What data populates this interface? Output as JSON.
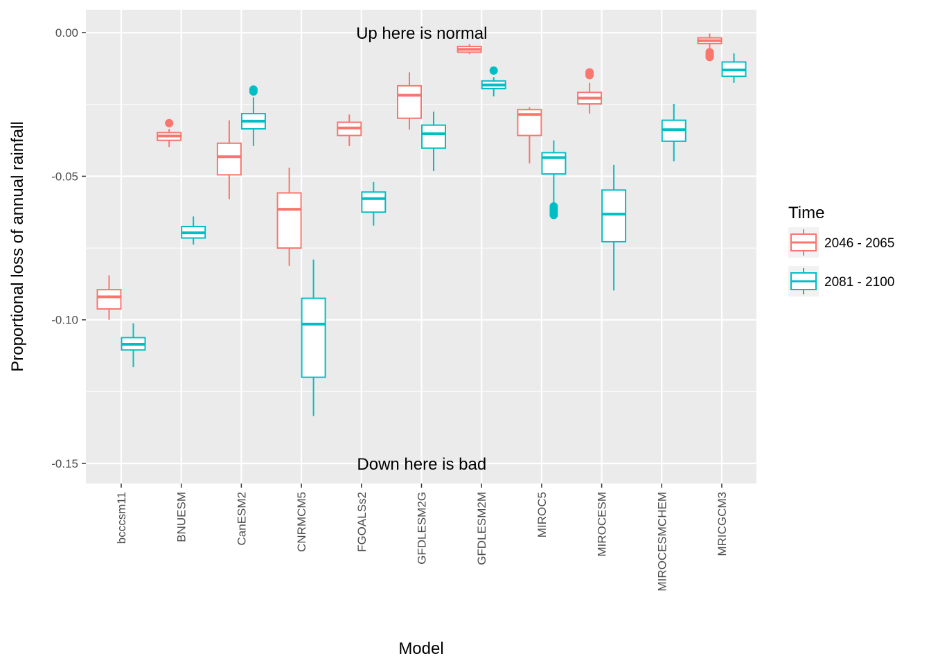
{
  "chart_data": {
    "type": "boxplot",
    "xlabel": "Model",
    "ylabel": "Proportional loss of annual rainfall",
    "ylim": [
      -0.157,
      0.008
    ],
    "y_ticks": [
      0.0,
      -0.05,
      -0.1,
      -0.15
    ],
    "y_tick_labels": [
      "0.00",
      "-0.05",
      "-0.10",
      "-0.15"
    ],
    "categories": [
      "bcccsm11",
      "BNUESM",
      "CanESM2",
      "CNRMCM5",
      "FGOALSs2",
      "GFDLESM2G",
      "GFDLESM2M",
      "MIROC5",
      "MIROCESM",
      "MIROCESMCHEM",
      "MRICGCM3"
    ],
    "grid": true,
    "legend": {
      "title": "Time",
      "position": "right"
    },
    "annotations": [
      {
        "text": "Up here is normal",
        "category": "FGOALSs2",
        "y": 0.0
      },
      {
        "text": "Down here is bad",
        "category": "FGOALSs2",
        "y": -0.15
      }
    ],
    "series": [
      {
        "name": "2046 - 2065",
        "color": "#F8766D",
        "boxes": [
          {
            "category": "bcccsm11",
            "min": -0.1,
            "q1": -0.0962,
            "median": -0.092,
            "q3": -0.0895,
            "max": -0.0845,
            "outliers": []
          },
          {
            "category": "BNUESM",
            "min": -0.0398,
            "q1": -0.0375,
            "median": -0.036,
            "q3": -0.0348,
            "max": -0.0335,
            "outliers": [
              -0.0315
            ]
          },
          {
            "category": "CanESM2",
            "min": -0.058,
            "q1": -0.0495,
            "median": -0.0432,
            "q3": -0.0385,
            "max": -0.0305,
            "outliers": []
          },
          {
            "category": "CNRMCM5",
            "min": -0.0812,
            "q1": -0.075,
            "median": -0.0615,
            "q3": -0.0558,
            "max": -0.047,
            "outliers": []
          },
          {
            "category": "FGOALSs2",
            "min": -0.0395,
            "q1": -0.0358,
            "median": -0.0332,
            "q3": -0.0312,
            "max": -0.0285,
            "outliers": []
          },
          {
            "category": "GFDLESM2G",
            "min": -0.0338,
            "q1": -0.0298,
            "median": -0.0218,
            "q3": -0.0185,
            "max": -0.0138,
            "outliers": []
          },
          {
            "category": "GFDLESM2M",
            "min": -0.0075,
            "q1": -0.0068,
            "median": -0.0058,
            "q3": -0.0048,
            "max": -0.004,
            "outliers": []
          },
          {
            "category": "MIROC5",
            "min": -0.0455,
            "q1": -0.0358,
            "median": -0.0285,
            "q3": -0.0268,
            "max": -0.026,
            "outliers": []
          },
          {
            "category": "MIROCESM",
            "min": -0.0282,
            "q1": -0.0248,
            "median": -0.0228,
            "q3": -0.0208,
            "max": -0.0175,
            "outliers": [
              -0.0148,
              -0.0142,
              -0.0138
            ]
          },
          {
            "category": "MRICGCM3",
            "min": -0.0065,
            "q1": -0.0038,
            "median": -0.0028,
            "q3": -0.0018,
            "max": -0.0003,
            "outliers": [
              -0.0068,
              -0.0075,
              -0.0082,
              -0.0085
            ]
          }
        ]
      },
      {
        "name": "2081 - 2100",
        "color": "#00BFC4",
        "boxes": [
          {
            "category": "bcccsm11",
            "min": -0.1165,
            "q1": -0.1105,
            "median": -0.1085,
            "q3": -0.1062,
            "max": -0.1012,
            "outliers": []
          },
          {
            "category": "BNUESM",
            "min": -0.0738,
            "q1": -0.0715,
            "median": -0.0697,
            "q3": -0.0675,
            "max": -0.064,
            "outliers": []
          },
          {
            "category": "CanESM2",
            "min": -0.0395,
            "q1": -0.0335,
            "median": -0.0308,
            "q3": -0.0282,
            "max": -0.0225,
            "outliers": [
              -0.0198,
              -0.0205
            ]
          },
          {
            "category": "CNRMCM5",
            "min": -0.1335,
            "q1": -0.12,
            "median": -0.1015,
            "q3": -0.0925,
            "max": -0.079,
            "outliers": []
          },
          {
            "category": "FGOALSs2",
            "min": -0.0672,
            "q1": -0.0625,
            "median": -0.0578,
            "q3": -0.0555,
            "max": -0.052,
            "outliers": []
          },
          {
            "category": "GFDLESM2G",
            "min": -0.0482,
            "q1": -0.0402,
            "median": -0.0352,
            "q3": -0.0322,
            "max": -0.0275,
            "outliers": []
          },
          {
            "category": "GFDLESM2M",
            "min": -0.0222,
            "q1": -0.0195,
            "median": -0.0182,
            "q3": -0.0168,
            "max": -0.0155,
            "outliers": [
              -0.0132
            ]
          },
          {
            "category": "MIROC5",
            "min": -0.0598,
            "q1": -0.0492,
            "median": -0.0435,
            "q3": -0.0418,
            "max": -0.0375,
            "outliers": [
              -0.0605,
              -0.0612,
              -0.062,
              -0.0628,
              -0.0635
            ]
          },
          {
            "category": "MIROCESM",
            "min": -0.0898,
            "q1": -0.0728,
            "median": -0.0632,
            "q3": -0.0548,
            "max": -0.046,
            "outliers": []
          },
          {
            "category": "MIROCESMCHEM",
            "min": -0.0448,
            "q1": -0.0378,
            "median": -0.0338,
            "q3": -0.0305,
            "max": -0.0248,
            "outliers": []
          },
          {
            "category": "MRICGCM3",
            "min": -0.0175,
            "q1": -0.0152,
            "median": -0.013,
            "q3": -0.0102,
            "max": -0.0072,
            "outliers": []
          }
        ]
      }
    ]
  }
}
